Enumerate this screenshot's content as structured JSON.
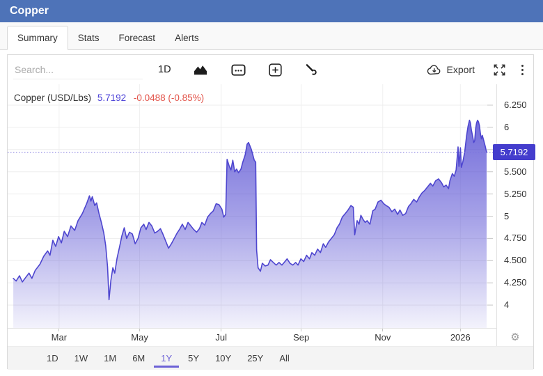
{
  "header": {
    "title": "Copper"
  },
  "tabs": [
    {
      "label": "Summary",
      "active": true
    },
    {
      "label": "Stats",
      "active": false
    },
    {
      "label": "Forecast",
      "active": false
    },
    {
      "label": "Alerts",
      "active": false
    }
  ],
  "toolbar": {
    "search_placeholder": "Search...",
    "interval_label": "1D",
    "export_label": "Export",
    "icons": [
      "area-chart-icon",
      "calendar-icon",
      "add-indicator-icon",
      "tools-icon",
      "export-cloud-icon",
      "fullscreen-icon",
      "kebab-menu-icon",
      "settings-gear-icon"
    ]
  },
  "legend": {
    "series_label": "Copper (USD/Lbs)",
    "price": "5.7192",
    "change": "-0.0488 (-0.85%)"
  },
  "colors": {
    "header_bg": "#4e73b8",
    "tab_active_accent": "#6c61d6",
    "price_text": "#4d43d8",
    "change_text": "#e25349",
    "line": "#4e46cf",
    "area_top": "#544cd2",
    "dotted_line": "#7b72dd",
    "badge_bg": "#443dcd",
    "grid": "#ededed",
    "grid_vertical": "#f0f0f0",
    "tick": "#c9c9c9"
  },
  "range_buttons": [
    {
      "label": "1D",
      "active": false
    },
    {
      "label": "1W",
      "active": false
    },
    {
      "label": "1M",
      "active": false
    },
    {
      "label": "6M",
      "active": false
    },
    {
      "label": "1Y",
      "active": true
    },
    {
      "label": "5Y",
      "active": false
    },
    {
      "label": "10Y",
      "active": false
    },
    {
      "label": "25Y",
      "active": false
    },
    {
      "label": "All",
      "active": false
    }
  ],
  "chart_data": {
    "type": "area",
    "title": "Copper (USD/Lbs)",
    "unit": "USD/Lbs",
    "current_price": 5.7192,
    "change": -0.0488,
    "change_pct": "-0.85%",
    "ylim": [
      3.74,
      6.49
    ],
    "grid": true,
    "gridlines_y": [
      4,
      4.25,
      4.5,
      4.75,
      5,
      5.25,
      5.5,
      5.75,
      6,
      6.25
    ],
    "ytick_labels": [
      {
        "label": "6.250",
        "value": 6.25
      },
      {
        "label": "6",
        "value": 6
      },
      {
        "label": "5.500",
        "value": 5.5
      },
      {
        "label": "5.250",
        "value": 5.25
      },
      {
        "label": "5",
        "value": 5
      },
      {
        "label": "4.750",
        "value": 4.75
      },
      {
        "label": "4.500",
        "value": 4.5
      },
      {
        "label": "4.250",
        "value": 4.25
      },
      {
        "label": "4",
        "value": 4
      }
    ],
    "badge_label": "5.7192",
    "xticks": [
      {
        "label": "Mar",
        "pct": 10.6
      },
      {
        "label": "May",
        "pct": 27.2
      },
      {
        "label": "Jul",
        "pct": 44.0
      },
      {
        "label": "Sep",
        "pct": 60.5
      },
      {
        "label": "Nov",
        "pct": 77.3
      },
      {
        "label": "2026",
        "pct": 93.3
      }
    ],
    "series_name": "Copper price, 1Y, x = % of time axis (Feb 2025 - Feb 2026), y = USD/Lbs",
    "series": [
      [
        0.6,
        4.3
      ],
      [
        1.2,
        4.27
      ],
      [
        1.9,
        4.33
      ],
      [
        2.5,
        4.26
      ],
      [
        3.2,
        4.31
      ],
      [
        3.9,
        4.36
      ],
      [
        4.5,
        4.3
      ],
      [
        5.2,
        4.39
      ],
      [
        6.2,
        4.46
      ],
      [
        7.0,
        4.55
      ],
      [
        7.8,
        4.61
      ],
      [
        8.3,
        4.56
      ],
      [
        8.9,
        4.73
      ],
      [
        9.5,
        4.66
      ],
      [
        10.1,
        4.77
      ],
      [
        10.7,
        4.7
      ],
      [
        11.3,
        4.83
      ],
      [
        12.0,
        4.77
      ],
      [
        12.7,
        4.89
      ],
      [
        13.5,
        4.84
      ],
      [
        14.2,
        4.95
      ],
      [
        15.1,
        5.03
      ],
      [
        16.0,
        5.14
      ],
      [
        16.6,
        5.23
      ],
      [
        16.9,
        5.17
      ],
      [
        17.2,
        5.22
      ],
      [
        17.7,
        5.12
      ],
      [
        18.1,
        5.15
      ],
      [
        18.6,
        5.03
      ],
      [
        19.1,
        4.93
      ],
      [
        19.6,
        4.81
      ],
      [
        20.0,
        4.67
      ],
      [
        20.4,
        4.43
      ],
      [
        20.7,
        4.06
      ],
      [
        21.1,
        4.28
      ],
      [
        21.5,
        4.42
      ],
      [
        21.9,
        4.36
      ],
      [
        22.4,
        4.53
      ],
      [
        22.9,
        4.65
      ],
      [
        23.4,
        4.78
      ],
      [
        23.9,
        4.87
      ],
      [
        24.4,
        4.75
      ],
      [
        25.0,
        4.82
      ],
      [
        25.6,
        4.8
      ],
      [
        26.2,
        4.69
      ],
      [
        26.8,
        4.75
      ],
      [
        27.4,
        4.87
      ],
      [
        28.0,
        4.91
      ],
      [
        28.5,
        4.85
      ],
      [
        29.1,
        4.93
      ],
      [
        29.7,
        4.89
      ],
      [
        30.3,
        4.81
      ],
      [
        30.9,
        4.83
      ],
      [
        31.5,
        4.86
      ],
      [
        32.0,
        4.8
      ],
      [
        32.6,
        4.72
      ],
      [
        33.2,
        4.64
      ],
      [
        33.8,
        4.69
      ],
      [
        34.4,
        4.75
      ],
      [
        35.0,
        4.81
      ],
      [
        35.6,
        4.86
      ],
      [
        36.1,
        4.91
      ],
      [
        36.7,
        4.85
      ],
      [
        37.3,
        4.93
      ],
      [
        37.9,
        4.89
      ],
      [
        38.5,
        4.85
      ],
      [
        39.1,
        4.82
      ],
      [
        39.7,
        4.86
      ],
      [
        40.2,
        4.93
      ],
      [
        40.8,
        4.9
      ],
      [
        41.4,
        4.99
      ],
      [
        42.0,
        5.03
      ],
      [
        42.6,
        5.06
      ],
      [
        43.2,
        5.14
      ],
      [
        43.8,
        5.13
      ],
      [
        44.4,
        5.08
      ],
      [
        44.8,
        4.99
      ],
      [
        45.2,
        5.02
      ],
      [
        45.5,
        5.64
      ],
      [
        45.9,
        5.57
      ],
      [
        46.3,
        5.52
      ],
      [
        46.7,
        5.63
      ],
      [
        47.1,
        5.5
      ],
      [
        47.5,
        5.53
      ],
      [
        47.9,
        5.49
      ],
      [
        48.4,
        5.53
      ],
      [
        48.8,
        5.61
      ],
      [
        49.3,
        5.69
      ],
      [
        49.7,
        5.81
      ],
      [
        50.0,
        5.83
      ],
      [
        50.3,
        5.79
      ],
      [
        50.6,
        5.75
      ],
      [
        50.9,
        5.69
      ],
      [
        51.2,
        5.63
      ],
      [
        51.5,
        5.61
      ],
      [
        51.7,
        4.62
      ],
      [
        52.0,
        4.42
      ],
      [
        52.5,
        4.38
      ],
      [
        52.9,
        4.47
      ],
      [
        53.5,
        4.44
      ],
      [
        54.1,
        4.45
      ],
      [
        54.6,
        4.51
      ],
      [
        55.2,
        4.48
      ],
      [
        55.8,
        4.45
      ],
      [
        56.4,
        4.48
      ],
      [
        57.0,
        4.45
      ],
      [
        57.5,
        4.48
      ],
      [
        58.1,
        4.52
      ],
      [
        58.7,
        4.47
      ],
      [
        59.3,
        4.45
      ],
      [
        59.9,
        4.48
      ],
      [
        60.4,
        4.45
      ],
      [
        61.0,
        4.52
      ],
      [
        61.6,
        4.49
      ],
      [
        62.2,
        4.56
      ],
      [
        62.8,
        4.52
      ],
      [
        63.3,
        4.59
      ],
      [
        63.9,
        4.56
      ],
      [
        64.5,
        4.63
      ],
      [
        65.1,
        4.59
      ],
      [
        65.7,
        4.69
      ],
      [
        66.2,
        4.65
      ],
      [
        66.8,
        4.71
      ],
      [
        67.4,
        4.75
      ],
      [
        68.0,
        4.79
      ],
      [
        68.6,
        4.87
      ],
      [
        69.1,
        4.91
      ],
      [
        69.7,
        4.99
      ],
      [
        70.3,
        5.03
      ],
      [
        70.9,
        5.07
      ],
      [
        71.5,
        5.12
      ],
      [
        72.0,
        5.1
      ],
      [
        72.3,
        4.79
      ],
      [
        72.8,
        4.95
      ],
      [
        73.2,
        4.91
      ],
      [
        73.6,
        5.01
      ],
      [
        74.1,
        4.96
      ],
      [
        74.5,
        4.93
      ],
      [
        74.9,
        4.95
      ],
      [
        75.5,
        4.91
      ],
      [
        76.1,
        5.06
      ],
      [
        76.6,
        5.08
      ],
      [
        77.2,
        5.16
      ],
      [
        77.8,
        5.18
      ],
      [
        78.4,
        5.14
      ],
      [
        78.9,
        5.12
      ],
      [
        79.5,
        5.1
      ],
      [
        80.1,
        5.05
      ],
      [
        80.7,
        5.08
      ],
      [
        81.3,
        5.02
      ],
      [
        81.8,
        5.07
      ],
      [
        82.4,
        5.01
      ],
      [
        83.0,
        5.03
      ],
      [
        83.6,
        5.11
      ],
      [
        84.1,
        5.14
      ],
      [
        84.7,
        5.19
      ],
      [
        85.3,
        5.16
      ],
      [
        85.9,
        5.22
      ],
      [
        86.4,
        5.26
      ],
      [
        87.0,
        5.29
      ],
      [
        87.6,
        5.33
      ],
      [
        88.2,
        5.37
      ],
      [
        88.7,
        5.34
      ],
      [
        89.3,
        5.4
      ],
      [
        89.9,
        5.42
      ],
      [
        90.5,
        5.38
      ],
      [
        91.0,
        5.33
      ],
      [
        91.5,
        5.35
      ],
      [
        92.0,
        5.31
      ],
      [
        92.3,
        5.4
      ],
      [
        92.8,
        5.48
      ],
      [
        93.2,
        5.45
      ],
      [
        93.6,
        5.52
      ],
      [
        94.0,
        5.78
      ],
      [
        94.2,
        5.56
      ],
      [
        94.5,
        5.77
      ],
      [
        94.7,
        5.55
      ],
      [
        95.0,
        5.61
      ],
      [
        95.4,
        5.72
      ],
      [
        95.8,
        5.91
      ],
      [
        96.1,
        6.01
      ],
      [
        96.4,
        6.08
      ],
      [
        96.6,
        6.05
      ],
      [
        96.8,
        5.97
      ],
      [
        97.1,
        5.89
      ],
      [
        97.3,
        5.83
      ],
      [
        97.5,
        5.85
      ],
      [
        97.7,
        5.99
      ],
      [
        97.9,
        6.05
      ],
      [
        98.1,
        6.08
      ],
      [
        98.3,
        6.06
      ],
      [
        98.5,
        6.02
      ],
      [
        98.7,
        5.93
      ],
      [
        98.9,
        5.87
      ],
      [
        99.1,
        5.91
      ],
      [
        99.4,
        5.85
      ],
      [
        99.7,
        5.79
      ],
      [
        100,
        5.7192
      ]
    ]
  }
}
